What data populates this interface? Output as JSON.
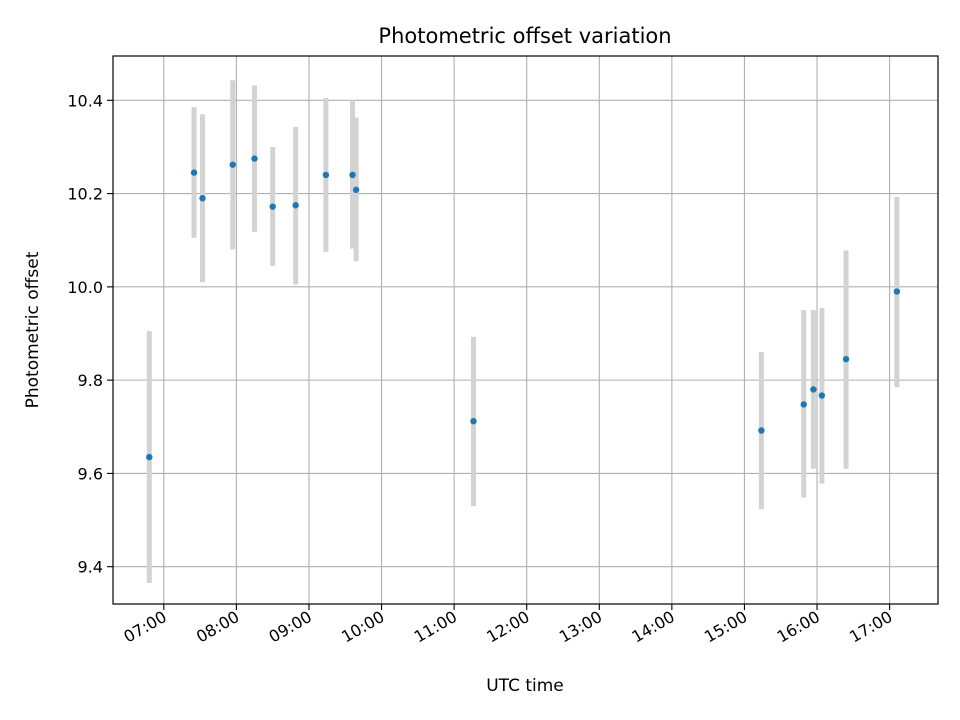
{
  "chart_data": {
    "type": "scatter",
    "title": "Photometric offset variation",
    "xlabel": "UTC time",
    "ylabel": "Photometric offset",
    "x_axis_type": "time",
    "xlim": [
      "06:18",
      "17:40"
    ],
    "ylim": [
      9.32,
      10.495
    ],
    "grid": true,
    "legend": "none",
    "x_ticks": [
      "07:00",
      "08:00",
      "09:00",
      "10:00",
      "11:00",
      "12:00",
      "13:00",
      "14:00",
      "15:00",
      "16:00",
      "17:00"
    ],
    "y_ticks": [
      "9.4",
      "9.6",
      "9.8",
      "10.0",
      "10.2",
      "10.4"
    ],
    "colors": {
      "point": "#1f77b4",
      "errorbar": "#d3d3d3",
      "grid": "#b0b0b0"
    },
    "series": [
      {
        "points": [
          {
            "x": "06:48",
            "y": 9.635,
            "low": 9.365,
            "high": 9.905
          },
          {
            "x": "07:25",
            "y": 10.245,
            "low": 10.105,
            "high": 10.385
          },
          {
            "x": "07:32",
            "y": 10.19,
            "low": 10.01,
            "high": 10.37
          },
          {
            "x": "07:57",
            "y": 10.262,
            "low": 10.08,
            "high": 10.443
          },
          {
            "x": "08:15",
            "y": 10.275,
            "low": 10.118,
            "high": 10.432
          },
          {
            "x": "08:30",
            "y": 10.172,
            "low": 10.045,
            "high": 10.3
          },
          {
            "x": "08:49",
            "y": 10.175,
            "low": 10.005,
            "high": 10.343
          },
          {
            "x": "09:14",
            "y": 10.24,
            "low": 10.075,
            "high": 10.405
          },
          {
            "x": "09:36",
            "y": 10.24,
            "low": 10.082,
            "high": 10.4
          },
          {
            "x": "09:39",
            "y": 10.208,
            "low": 10.055,
            "high": 10.363
          },
          {
            "x": "11:16",
            "y": 9.712,
            "low": 9.53,
            "high": 9.893
          },
          {
            "x": "15:14",
            "y": 9.692,
            "low": 9.523,
            "high": 9.86
          },
          {
            "x": "15:49",
            "y": 9.748,
            "low": 9.548,
            "high": 9.95
          },
          {
            "x": "15:57",
            "y": 9.78,
            "low": 9.61,
            "high": 9.95
          },
          {
            "x": "16:04",
            "y": 9.767,
            "low": 9.578,
            "high": 9.955
          },
          {
            "x": "16:24",
            "y": 9.845,
            "low": 9.61,
            "high": 10.078
          },
          {
            "x": "17:06",
            "y": 9.99,
            "low": 9.785,
            "high": 10.193
          }
        ]
      }
    ]
  }
}
